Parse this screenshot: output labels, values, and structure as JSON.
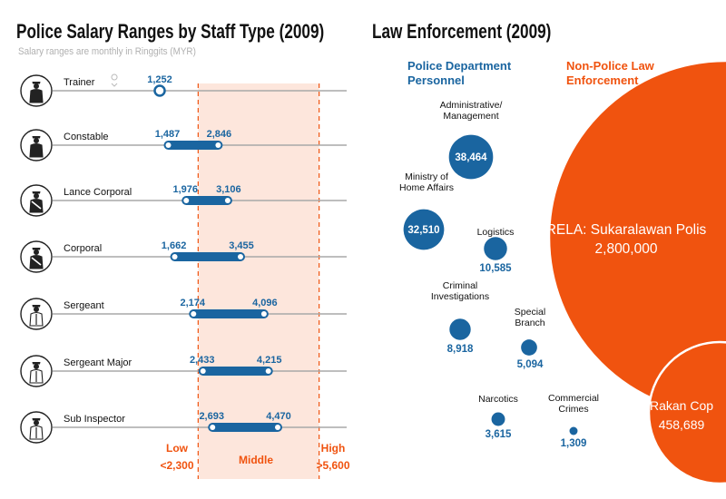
{
  "left_chart": {
    "title": "Police Salary Ranges by Staff Type (2009)",
    "subtitle": "Salary ranges are monthly in Ringgits (MYR)",
    "bands": {
      "low_label": "Low",
      "low_value": "<2,300",
      "middle_label": "Middle",
      "high_label": "High",
      "high_value": ">5,600"
    }
  },
  "right_chart": {
    "title": "Law Enforcement (2009)",
    "police_header_line1": "Police Department",
    "police_header_line2": "Personnel",
    "nonpolice_header_line1": "Non-Police Law",
    "nonpolice_header_line2": "Enforcement"
  },
  "colors": {
    "blue": "#1a65a0",
    "orange": "#f0530f",
    "band_fill": "#fde6dc",
    "band_line": "#f0530f",
    "axis_grey": "#a8a8a8"
  },
  "chart_data": [
    {
      "type": "range",
      "title": "Police Salary Ranges by Staff Type (2009)",
      "subtitle": "Salary ranges are monthly in Ringgits (MYR)",
      "unit": "MYR per month",
      "band_thresholds": [
        2300,
        5600
      ],
      "categories": [
        "Trainer",
        "Constable",
        "Lance Corporal",
        "Corporal",
        "Sergeant",
        "Sergeant Major",
        "Sub Inspector"
      ],
      "rows": [
        {
          "label": "Trainer",
          "min": 1252,
          "max": 1252,
          "min_label": "1,252",
          "max_label": ""
        },
        {
          "label": "Constable",
          "min": 1487,
          "max": 2846,
          "min_label": "1,487",
          "max_label": "2,846"
        },
        {
          "label": "Lance Corporal",
          "min": 1976,
          "max": 3106,
          "min_label": "1,976",
          "max_label": "3,106"
        },
        {
          "label": "Corporal",
          "min": 1662,
          "max": 3455,
          "min_label": "1,662",
          "max_label": "3,455"
        },
        {
          "label": "Sergeant",
          "min": 2174,
          "max": 4096,
          "min_label": "2,174",
          "max_label": "4,096"
        },
        {
          "label": "Sergeant Major",
          "min": 2433,
          "max": 4215,
          "min_label": "2,433",
          "max_label": "4,215"
        },
        {
          "label": "Sub Inspector",
          "min": 2693,
          "max": 4470,
          "min_label": "2,693",
          "max_label": "4,470"
        }
      ]
    },
    {
      "type": "bubble",
      "title": "Law Enforcement (2009)",
      "groups": [
        "Police Department Personnel",
        "Non-Police Law Enforcement"
      ],
      "items": [
        {
          "group": "police",
          "name": "Administrative/\nManagement",
          "value": 38464,
          "value_label": "38,464"
        },
        {
          "group": "police",
          "name": "Ministry of\nHome Affairs",
          "value": 32510,
          "value_label": "32,510"
        },
        {
          "group": "police",
          "name": "Logistics",
          "value": 10585,
          "value_label": "10,585"
        },
        {
          "group": "police",
          "name": "Criminal\nInvestigations",
          "value": 8918,
          "value_label": "8,918"
        },
        {
          "group": "police",
          "name": "Special\nBranch",
          "value": 5094,
          "value_label": "5,094"
        },
        {
          "group": "police",
          "name": "Narcotics",
          "value": 3615,
          "value_label": "3,615"
        },
        {
          "group": "police",
          "name": "Commercial\nCrimes",
          "value": 1309,
          "value_label": "1,309"
        },
        {
          "group": "nonpolice",
          "name": "RELA: Sukaralawan Polis",
          "value": 2800000,
          "value_label": "2,800,000"
        },
        {
          "group": "nonpolice",
          "name": "Rakan Cop",
          "value": 458689,
          "value_label": "458,689"
        }
      ]
    }
  ]
}
